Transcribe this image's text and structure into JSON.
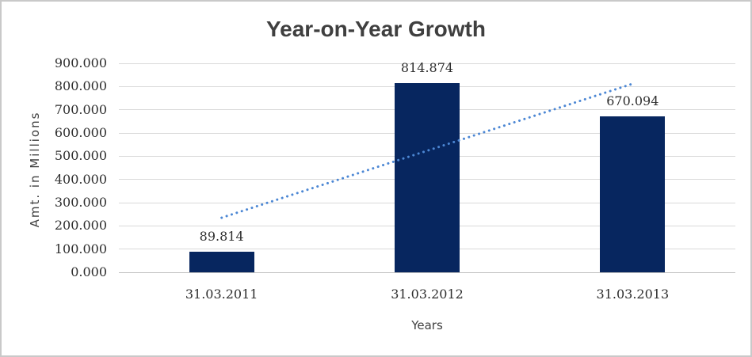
{
  "chart_data": {
    "type": "bar",
    "title": "Year-on-Year Growth",
    "categories": [
      "31.03.2011",
      "31.03.2012",
      "31.03.2013"
    ],
    "values": [
      89.814,
      814.874,
      670.094
    ],
    "data_labels": [
      "89.814",
      "814.874",
      "670.094"
    ],
    "xlabel": "Years",
    "ylabel": "Amt. in Millions",
    "ylim": [
      0,
      900
    ],
    "ytick_interval": 100,
    "ytick_labels": [
      "0.000",
      "100.000",
      "200.000",
      "300.000",
      "400.000",
      "500.000",
      "600.000",
      "700.000",
      "800.000",
      "900.000"
    ],
    "grid": true,
    "legend": false,
    "bar_color": "#07265f",
    "trendline": {
      "type": "linear",
      "style": "dotted",
      "color": "#4c87d4",
      "start_value": 235,
      "end_value": 812
    }
  },
  "colors": {
    "title_text": "#3f3f3f",
    "axis_title_text": "#404040",
    "tick_label_text": "#2e2e2e",
    "gridline": "#d9d9d9",
    "axis_line": "#bfbfbf",
    "frame_border": "#c9c9c9",
    "background": "#ffffff"
  }
}
